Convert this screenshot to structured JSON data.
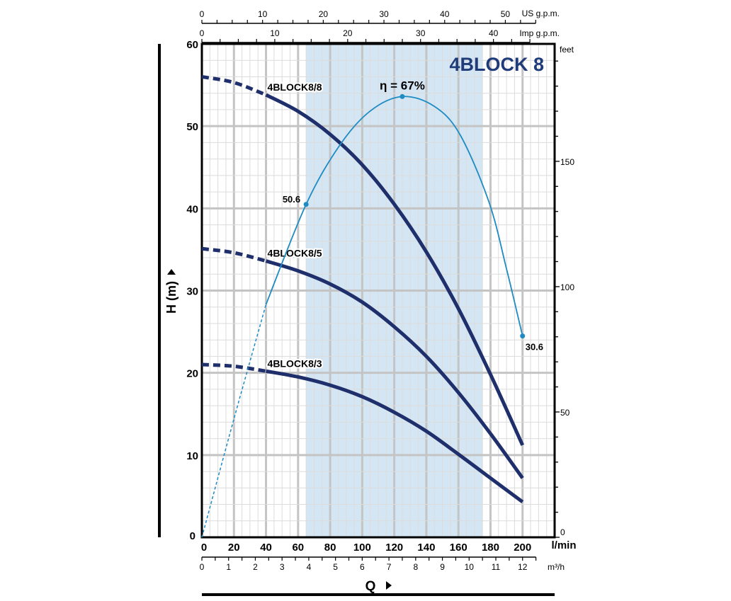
{
  "chart_data": {
    "type": "line",
    "title": "4BLOCK 8",
    "xlabel": "Q",
    "ylabel": "H (m)",
    "x_unit": "l/min",
    "xlim": [
      0,
      220
    ],
    "ylim": [
      0,
      60
    ],
    "x_ticks": [
      0,
      20,
      40,
      60,
      80,
      100,
      120,
      140,
      160,
      180,
      200
    ],
    "y_ticks": [
      0,
      10,
      20,
      30,
      40,
      50,
      60
    ],
    "grid": true,
    "recommended_range_lmin": [
      65,
      175
    ],
    "secondary_axes": {
      "us_gpm": {
        "label": "US g.p.m.",
        "ticks": [
          0,
          10,
          20,
          30,
          40,
          50
        ]
      },
      "imp_gpm": {
        "label": "Imp g.p.m.",
        "ticks": [
          0,
          10,
          20,
          30,
          40
        ]
      },
      "m3h": {
        "label": "m³/h",
        "ticks": [
          0,
          1,
          2,
          3,
          4,
          5,
          6,
          7,
          8,
          9,
          10,
          11,
          12
        ]
      },
      "feet": {
        "label": "feet",
        "ticks": [
          0,
          50,
          100,
          150
        ]
      }
    },
    "series": [
      {
        "name": "4BLOCK8/8",
        "x": [
          0,
          20,
          40,
          60,
          80,
          100,
          120,
          140,
          160,
          180,
          200
        ],
        "y": [
          56,
          55.3,
          53.8,
          51.8,
          49,
          45.3,
          40.5,
          34.7,
          27.8,
          19.8,
          11.2
        ],
        "dashed_until": 40
      },
      {
        "name": "4BLOCK8/5",
        "x": [
          0,
          20,
          40,
          60,
          80,
          100,
          120,
          140,
          160,
          180,
          200
        ],
        "y": [
          35.1,
          34.6,
          33.6,
          32.4,
          30.8,
          28.6,
          25.6,
          22,
          17.6,
          12.6,
          7.2
        ],
        "dashed_until": 40
      },
      {
        "name": "4BLOCK8/3",
        "x": [
          0,
          20,
          40,
          60,
          80,
          100,
          120,
          140,
          160,
          180,
          200
        ],
        "y": [
          21,
          20.8,
          20.2,
          19.5,
          18.5,
          17.1,
          15.2,
          12.9,
          10.1,
          7.2,
          4.3
        ],
        "dashed_until": 40
      }
    ],
    "efficiency": {
      "label": "η = 67%",
      "unit": "%",
      "x": [
        0,
        20,
        40,
        65,
        86,
        105,
        125,
        145,
        161,
        179,
        190,
        200
      ],
      "y": [
        0,
        18,
        35.4,
        50.6,
        59.6,
        64.8,
        67,
        65.5,
        61.2,
        51,
        40.8,
        30.6
      ],
      "dashed_until": 40,
      "marked_points": [
        {
          "x": 65,
          "y": 50.6,
          "label": "50.6"
        },
        {
          "x": 125,
          "y": 67,
          "label": "η = 67%"
        },
        {
          "x": 200,
          "y": 30.6,
          "label": "30.6"
        }
      ]
    },
    "colors": {
      "curve": "#1f2f6b",
      "efficiency": "#1e8bc3",
      "shade": "#d4e6f4",
      "grid_major": "#c4c4c4",
      "grid_minor": "#dcdcdc"
    }
  }
}
